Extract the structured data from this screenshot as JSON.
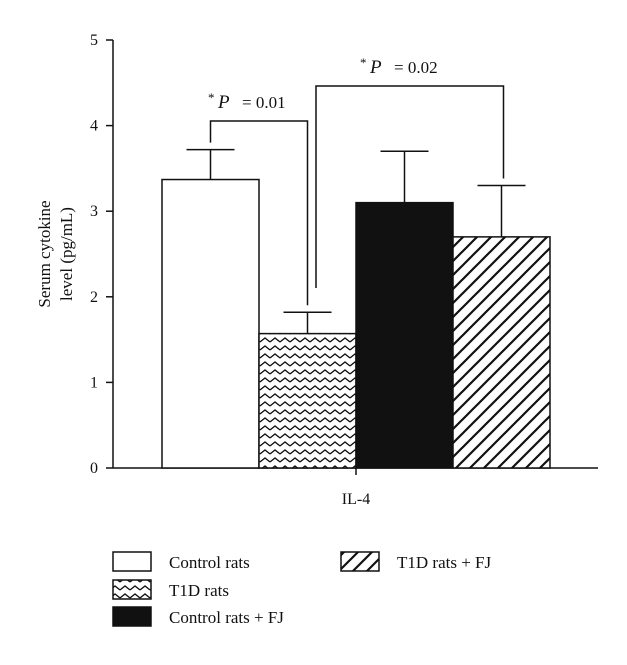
{
  "chart_data": {
    "type": "bar",
    "categories": [
      "IL-4"
    ],
    "ylabel_lines": [
      "Serum cytokine",
      "level (pg/mL)"
    ],
    "ylim": [
      0,
      5
    ],
    "yticks": [
      "0",
      "1",
      "2",
      "3",
      "4",
      "5"
    ],
    "grid": false,
    "legend_position": "bottom",
    "series": [
      {
        "name": "Control rats",
        "values": [
          3.37
        ],
        "error": [
          0.35
        ],
        "pattern": "empty"
      },
      {
        "name": "T1D rats",
        "values": [
          1.57
        ],
        "error": [
          0.25
        ],
        "pattern": "zigzag"
      },
      {
        "name": "Control rats + FJ",
        "values": [
          3.1
        ],
        "error": [
          0.6
        ],
        "pattern": "solid"
      },
      {
        "name": "T1D rats + FJ",
        "values": [
          2.7
        ],
        "error": [
          0.6
        ],
        "pattern": "diagonal"
      }
    ],
    "annotations": [
      {
        "star": "*",
        "p_symbol": "P",
        "text": "=  0.01",
        "between": [
          "Control rats",
          "T1D rats"
        ]
      },
      {
        "star": "*",
        "p_symbol": "P",
        "text": "=  0.02",
        "between": [
          "T1D rats",
          "T1D rats + FJ"
        ]
      }
    ],
    "colors": {
      "bar_fill": "#ffffff",
      "solid": "#111111",
      "stroke": "#111111"
    }
  }
}
